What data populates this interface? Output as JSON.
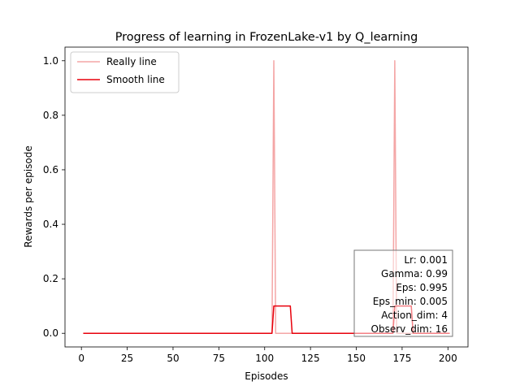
{
  "chart_data": {
    "type": "line",
    "title": "Progress of learning in FrozenLake-v1 by Q_learning",
    "xlabel": "Episodes",
    "ylabel": "Rewards per episode",
    "xlim": [
      -8.95,
      210.95
    ],
    "ylim": [
      -0.05,
      1.05
    ],
    "xticks": [
      0,
      25,
      50,
      75,
      100,
      125,
      150,
      175,
      200
    ],
    "yticks": [
      0.0,
      0.2,
      0.4,
      0.6,
      0.8,
      1.0
    ],
    "xtick_labels": [
      "0",
      "25",
      "50",
      "75",
      "100",
      "125",
      "150",
      "175",
      "200"
    ],
    "ytick_labels": [
      "0.0",
      "0.2",
      "0.4",
      "0.6",
      "0.8",
      "1.0"
    ],
    "grid": false,
    "legend_position": "upper-left",
    "series": [
      {
        "name": "Really line",
        "color": "#f4a6a6",
        "x": [
          1,
          104,
          105,
          106,
          170,
          171,
          172,
          201
        ],
        "y": [
          0,
          0,
          1,
          0,
          0,
          1,
          0,
          0
        ]
      },
      {
        "name": "Smooth line",
        "color": "#e8000b",
        "x": [
          1,
          104,
          105,
          114,
          115,
          170,
          171,
          180,
          181,
          201
        ],
        "y": [
          0,
          0,
          0.1,
          0.1,
          0,
          0,
          0.1,
          0.1,
          0,
          0
        ]
      }
    ],
    "info_box": {
      "position": "lower-right",
      "lines": [
        "Lr: 0.001",
        "Gamma: 0.99",
        "Eps: 0.995",
        "Eps_min: 0.005",
        "Action_dim: 4",
        "Observ_dim: 16"
      ]
    }
  }
}
